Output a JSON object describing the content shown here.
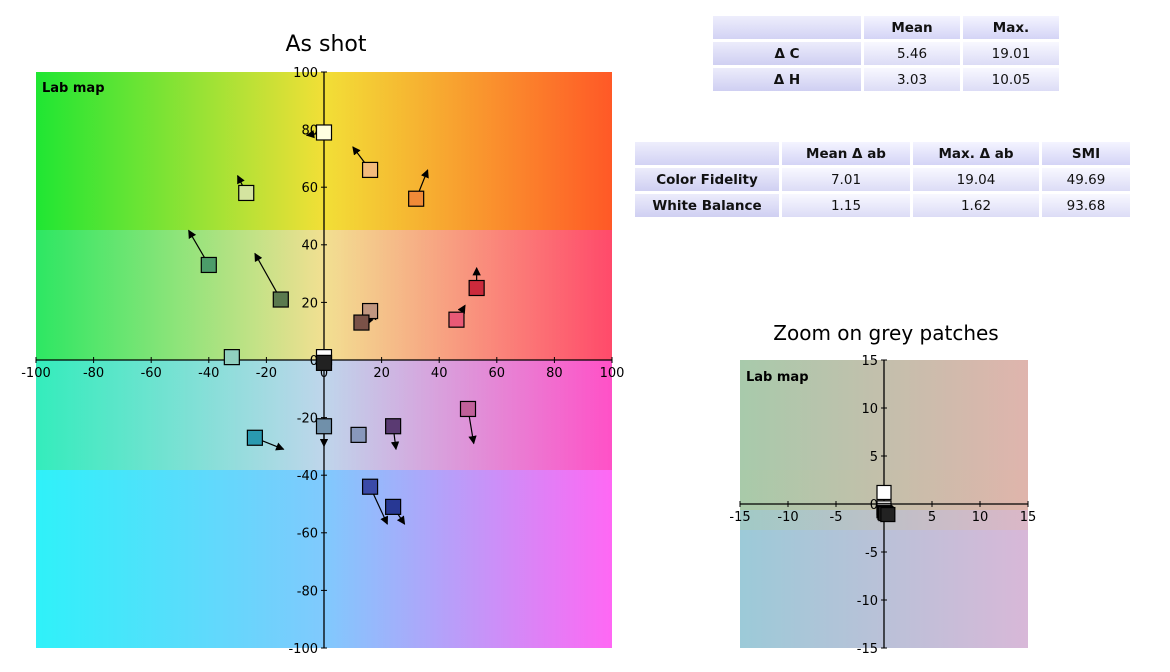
{
  "chart_data": [
    {
      "type": "scatter",
      "title": "As shot",
      "panel_label": "Lab map",
      "xlim": [
        -100,
        100
      ],
      "ylim": [
        -100,
        100
      ],
      "xticks": [
        -100,
        -80,
        -60,
        -40,
        -20,
        0,
        20,
        40,
        60,
        80,
        100
      ],
      "yticks": [
        -100,
        -80,
        -60,
        -40,
        -20,
        0,
        20,
        40,
        60,
        80,
        100
      ],
      "points": [
        {
          "a": 0,
          "b": 79,
          "to": [
            -6,
            78
          ],
          "color": "#ffffe0"
        },
        {
          "a": 16,
          "b": 66,
          "to": [
            10,
            74
          ],
          "color": "#f3bb7c"
        },
        {
          "a": -27,
          "b": 58,
          "to": [
            -30,
            64
          ],
          "color": "#d4e4a0"
        },
        {
          "a": 32,
          "b": 56,
          "to": [
            36,
            66
          ],
          "color": "#f08a38"
        },
        {
          "a": -40,
          "b": 33,
          "to": [
            -47,
            45
          ],
          "color": "#4c9c6a"
        },
        {
          "a": -15,
          "b": 21,
          "to": [
            -24,
            37
          ],
          "color": "#5a7a4e"
        },
        {
          "a": 53,
          "b": 25,
          "to": [
            53,
            32
          ],
          "color": "#cc2a3c"
        },
        {
          "a": 16,
          "b": 17,
          "to": [
            18,
            14
          ],
          "color": "#c09680"
        },
        {
          "a": 13,
          "b": 13,
          "to": [
            17,
            14
          ],
          "color": "#7a5248"
        },
        {
          "a": 46,
          "b": 14,
          "to": [
            49,
            19
          ],
          "color": "#e85a76"
        },
        {
          "a": -32,
          "b": 1,
          "to": [
            -32,
            1
          ],
          "color": "#90d0c0"
        },
        {
          "a": 0,
          "b": 1,
          "to": [
            0,
            0
          ],
          "color": "#ffffff"
        },
        {
          "a": 0,
          "b": -1,
          "to": [
            0,
            -1
          ],
          "color": "#222222"
        },
        {
          "a": 50,
          "b": -17,
          "to": [
            52,
            -29
          ],
          "color": "#c0609a"
        },
        {
          "a": -24,
          "b": -27,
          "to": [
            -14,
            -31
          ],
          "color": "#2a9ab0"
        },
        {
          "a": 0,
          "b": -23,
          "to": [
            0,
            -30
          ],
          "color": "#7090aa"
        },
        {
          "a": 12,
          "b": -26,
          "to": [
            12,
            -26
          ],
          "color": "#8898bc"
        },
        {
          "a": 24,
          "b": -23,
          "to": [
            25,
            -31
          ],
          "color": "#5a3a72"
        },
        {
          "a": 16,
          "b": -44,
          "to": [
            22,
            -57
          ],
          "color": "#3a4aa8"
        },
        {
          "a": 24,
          "b": -51,
          "to": [
            28,
            -57
          ],
          "color": "#283894"
        }
      ]
    },
    {
      "type": "scatter",
      "title": "Zoom on grey patches",
      "panel_label": "Lab map",
      "xlim": [
        -15,
        15
      ],
      "ylim": [
        -15,
        15
      ],
      "xticks": [
        -15,
        -10,
        -5,
        0,
        5,
        10,
        15
      ],
      "yticks": [
        -15,
        -10,
        -5,
        0,
        5,
        10,
        15
      ],
      "points": [
        {
          "a": 0,
          "b": 1.2,
          "to": [
            0,
            0.6
          ],
          "color": "#ffffff"
        },
        {
          "a": 0,
          "b": -0.4,
          "to": [
            -0.3,
            -0.6
          ],
          "color": "#d8d8d8"
        },
        {
          "a": 0,
          "b": -0.7,
          "to": [
            -0.4,
            -0.8
          ],
          "color": "#b0b0b0"
        },
        {
          "a": 0.1,
          "b": -0.9,
          "to": [
            -0.5,
            -1.1
          ],
          "color": "#6a6a6a"
        },
        {
          "a": 0.2,
          "b": -1.0,
          "to": [
            -0.4,
            -1.2
          ],
          "color": "#3a3a3a"
        },
        {
          "a": 0.4,
          "b": -1.1,
          "to": [
            -0.3,
            -1.4
          ],
          "color": "#222222"
        }
      ]
    }
  ],
  "table1": {
    "headers": [
      "",
      "Mean",
      "Max."
    ],
    "rows": [
      {
        "label": "Δ C",
        "mean": "5.46",
        "max": "19.01"
      },
      {
        "label": "Δ H",
        "mean": "3.03",
        "max": "10.05"
      }
    ]
  },
  "table2": {
    "headers": [
      "",
      "Mean Δ ab",
      "Max. Δ ab",
      "SMI"
    ],
    "rows": [
      {
        "label": "Color Fidelity",
        "mean": "7.01",
        "max": "19.04",
        "smi": "49.69"
      },
      {
        "label": "White Balance",
        "mean": "1.15",
        "max": "1.62",
        "smi": "93.68"
      }
    ]
  }
}
